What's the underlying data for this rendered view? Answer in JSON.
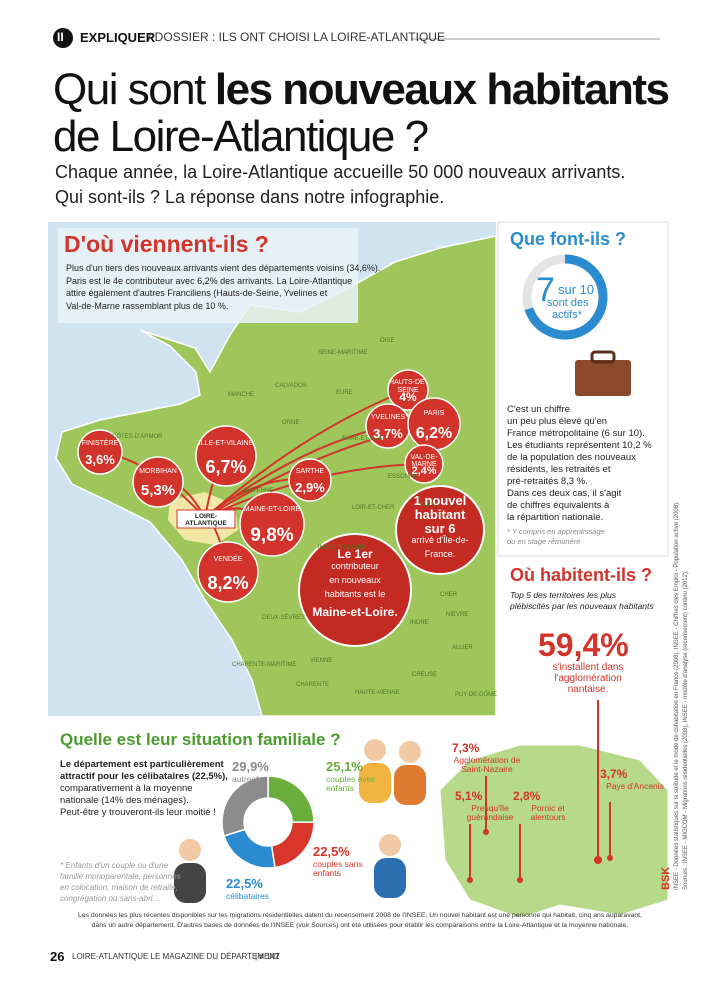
{
  "header": {
    "section": "II",
    "label": "EXPLIQUER",
    "breadcrumb": "/ DOSSIER : ILS ONT CHOISI LA LOIRE-ATLANTIQUE"
  },
  "title": {
    "regular": "Qui sont",
    "bold": "les nouveaux habitants",
    "line2": "de Loire-Atlantique ?"
  },
  "intro": [
    "Chaque année, la Loire-Atlantique accueille 50 000 nouveaux arrivants.",
    "Qui sont-ils ? La réponse dans notre infographie."
  ],
  "origin": {
    "title": "D'où viennent-ils ?",
    "text": [
      "Plus d'un tiers des nouveaux arrivants vient des départements voisins (34,6%).",
      "Paris est le 4e contributeur avec 6,2% des arrivants. La Loire-Atlantique",
      "attire également d'autres Franciliens (Hauts-de-Seine, Yvelines et",
      "Val-de-Marne rassemblant  plus de 10 %."
    ],
    "home": "LOIRE-ATLANTIQUE",
    "departments": [
      {
        "name": "FINISTÈRE",
        "share": "3,6%"
      },
      {
        "name": "MORBIHAN",
        "share": "5,3%"
      },
      {
        "name": "ILLE-ET-VILAINE",
        "share": "6,7%"
      },
      {
        "name": "SARTHE",
        "share": "2,9%"
      },
      {
        "name": "MAINE-ET-LOIRE",
        "share": "9,8%"
      },
      {
        "name": "VENDÉE",
        "share": "8,2%"
      },
      {
        "name": "HAUTS-DE-SEINE",
        "share": "4%"
      },
      {
        "name": "YVELINES",
        "share": "3,7%"
      },
      {
        "name": "PARIS",
        "share": "6,2%"
      },
      {
        "name": "VAL-DE-MARNE",
        "share": "2,4%"
      }
    ],
    "highlights": [
      [
        "1 nouvel",
        "habitant",
        "sur 6",
        "arrivé d'Île-de-",
        "France."
      ],
      [
        "Le 1er",
        "contributeur",
        "en nouveaux",
        "habitants est le",
        "Maine-et-Loire."
      ]
    ],
    "map_labels": [
      "MANCHE",
      "CALVADOS",
      "ORNE",
      "EURE",
      "SEINE-MARITIME",
      "OISE",
      "CÔTES-D'ARMOR",
      "MAYENNE",
      "EURE-ET-LOIR",
      "ESSONNE",
      "LOIRET",
      "LOIR-ET-CHER",
      "INDRE-ET-LOIRE",
      "DEUX-SÈVRES",
      "VIENNE",
      "INDRE",
      "CHER",
      "ALLIER",
      "NIÈVRE",
      "CHARENTE-MARITIME",
      "CHARENTE",
      "HAUTE-VIENNE",
      "CREUSE",
      "PUY-DE-DÔME"
    ]
  },
  "activity": {
    "title": "Que font-ils ?",
    "value": 7,
    "total": 10,
    "total_label": "sur 10",
    "caption": [
      "sont des",
      "actifs*"
    ],
    "text": [
      "C'est un chiffre",
      "un peu plus élevé qu'en",
      "France métropolitaine (6 sur 10).",
      "Les étudiants représentent 10,2 %",
      "de la population des nouveaux",
      "résidents, les retraités et",
      "pré-retraités 8,3 %.",
      "Dans ces deux cas, il s'agit",
      "de chiffres équivalents à",
      "la répartition nationale."
    ],
    "footnote": [
      "* Y compris en apprentissage",
      "ou en stage rémunéré"
    ]
  },
  "residence": {
    "title": "Où habitent-ils ?",
    "subtitle": [
      "Top 5 des territoires les plus",
      "plébiscités par les nouveaux habitants"
    ],
    "main": {
      "share": "59,4%",
      "text": [
        "s'installent dans",
        "l'agglomération",
        "nantaise."
      ]
    },
    "territories": [
      {
        "share": "7,3%",
        "name": "Agglomération de Saint-Nazaire"
      },
      {
        "share": "5,1%",
        "name": "Presqu'île guérandaise"
      },
      {
        "share": "2,8%",
        "name": "Pornic et alentours"
      },
      {
        "share": "3,7%",
        "name": "Pays d'Ancenis"
      }
    ]
  },
  "family": {
    "title": "Quelle est leur situation familiale ?",
    "text_bold": [
      "Le département est particulièrement",
      "attractif pour les célibataires (22,5%),"
    ],
    "text": [
      "comparativement à la moyenne",
      "nationale (14% des ménages).",
      "Peut-être y trouveront-ils leur moitié !"
    ],
    "footnote": [
      "* Enfants d'un couple ou d'une",
      "famille monoparentale, personnes",
      "en colocation, maison de retraite,",
      "congrégation ou sans-abri…"
    ],
    "segments": [
      {
        "label": "couples avec enfants",
        "value": 25.1,
        "value_label": "25,1%",
        "color": "#6aae3c"
      },
      {
        "label": "couples sans enfants",
        "value": 22.5,
        "value_label": "22,5%",
        "color": "#d8362a"
      },
      {
        "label": "célibataires",
        "value": 22.5,
        "value_label": "22,5%",
        "color": "#2a8bd0"
      },
      {
        "label": "autres*",
        "value": 29.9,
        "value_label": "29,9%",
        "color": "#8c8c8c"
      }
    ]
  },
  "note": [
    "Les données les plus récentes disponibles sur les migrations résidentielles datent du recensement 2008 de l'INSEE. Un nouvel habitant est une personne qui habitait, cinq ans auparavant,",
    "dans un autre département. D'autres bases de données de l'INSEE (voir Sources) ont été utilisées pour établir les comparaisons entre la Loire-Atlantique et la moyenne nationale."
  ],
  "sources": [
    "Sources : INSEE - MIGCOM - Migrations résidentielles (2008), INSEE - modèle d'analyse (recensement) continu (2012),",
    "INSEE - Données statistiques sur la solitude et le mode de cohabitation en France (2008), INSEE - Chiffres clés Emploi - Population active (2008)."
  ],
  "credit": "BSK",
  "footer": {
    "page": "26",
    "magazine": "LOIRE-ATLANTIQUE LE MAGAZINE DU DÉPARTEMENT",
    "issue": "| # 142"
  }
}
